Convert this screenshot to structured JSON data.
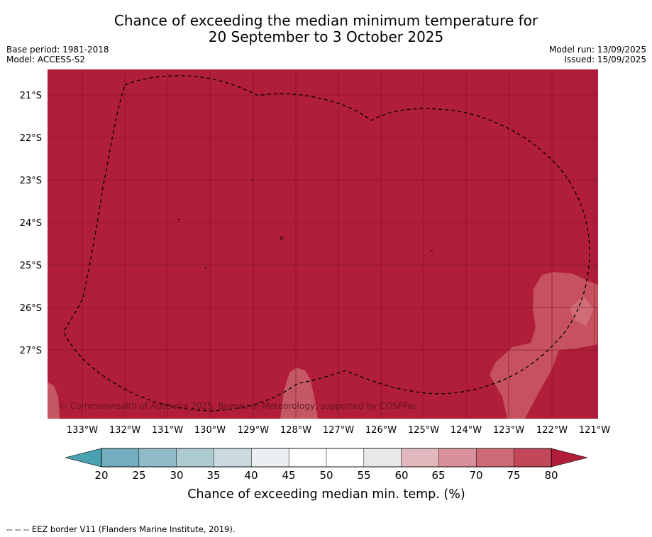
{
  "title": {
    "line1": "Chance of exceeding the median minimum temperature for",
    "line2": "20 September to 3 October 2025"
  },
  "meta": {
    "base_period": "Base period: 1981-2018",
    "model": "Model: ACCESS-S2",
    "model_run": "Model run: 13/09/2025",
    "issued": "Issued: 15/09/2025"
  },
  "map": {
    "lon_ticks": [
      "133°W",
      "132°W",
      "131°W",
      "130°W",
      "129°W",
      "128°W",
      "127°W",
      "126°W",
      "125°W",
      "124°W",
      "123°W",
      "122°W",
      "121°W"
    ],
    "lat_ticks": [
      "21°S",
      "22°S",
      "23°S",
      "24°S",
      "25°S",
      "26°S",
      "27°S"
    ],
    "copyright": "© Commonwealth of Australia 2025, Bureau of Meteorology, supported by COSPPac",
    "colors": {
      "band_80_plus": "#b11e3a",
      "band_75_80": "#c2525e",
      "band_70_75": "#cd6a76",
      "band_20_25": "#76b2bf",
      "grid": "#7a1022",
      "eez": "#000000"
    }
  },
  "colorbar": {
    "ticks": [
      "20",
      "25",
      "30",
      "35",
      "40",
      "45",
      "50",
      "55",
      "60",
      "65",
      "70",
      "75",
      "80"
    ],
    "label": "Chance of exceeding median min. temp. (%)",
    "under_color": "#4aa1b1",
    "over_color": "#b11e3a",
    "colors": [
      "#72aebe",
      "#8fbcc7",
      "#aecbd0",
      "#cbdade",
      "#eaf0f2",
      "#ffffff",
      "#ffffff",
      "#e8e8e8",
      "#e2b8bf",
      "#d9909a",
      "#cc6b76",
      "#c04858"
    ]
  },
  "footnote": "--  --  -- EEZ border V11 (Flanders Marine Institute, 2019)."
}
